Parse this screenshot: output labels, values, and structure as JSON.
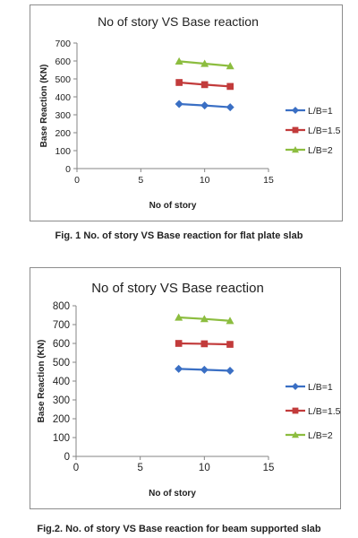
{
  "figures": [
    {
      "caption": "Fig. 1 No. of story VS Base reaction for flat plate slab"
    },
    {
      "caption": "Fig.2. No. of story VS Base reaction for beam supported slab"
    }
  ],
  "chart_data": [
    {
      "type": "line",
      "title": "No of story VS Base reaction",
      "xlabel": "No of story",
      "ylabel": "Base Reaction (KN)",
      "xlim": [
        0,
        15
      ],
      "ylim": [
        0,
        700
      ],
      "xticks": [
        0,
        5,
        10,
        15
      ],
      "yticks": [
        0,
        100,
        200,
        300,
        400,
        500,
        600,
        700
      ],
      "grid": false,
      "legend_position": "right",
      "series": [
        {
          "name": "L/B=1",
          "color": "#3a6fc4",
          "marker": "diamond",
          "x": [
            8,
            10,
            12
          ],
          "y": [
            360,
            352,
            342
          ]
        },
        {
          "name": "L/B=1.5",
          "color": "#c23b3b",
          "marker": "square",
          "x": [
            8,
            10,
            12
          ],
          "y": [
            480,
            468,
            458
          ]
        },
        {
          "name": "L/B=2",
          "color": "#8cbd3f",
          "marker": "triangle",
          "x": [
            8,
            10,
            12
          ],
          "y": [
            598,
            585,
            572
          ]
        }
      ]
    },
    {
      "type": "line",
      "title": "No of story VS Base reaction",
      "xlabel": "No of story",
      "ylabel": "Base Reaction (KN)",
      "xlim": [
        0,
        15
      ],
      "ylim": [
        0,
        800
      ],
      "xticks": [
        0,
        5,
        10,
        15
      ],
      "yticks": [
        0,
        100,
        200,
        300,
        400,
        500,
        600,
        700,
        800
      ],
      "grid": false,
      "legend_position": "right",
      "series": [
        {
          "name": "L/B=1",
          "color": "#3a6fc4",
          "marker": "diamond",
          "x": [
            8,
            10,
            12
          ],
          "y": [
            465,
            460,
            455
          ]
        },
        {
          "name": "L/B=1.5",
          "color": "#c23b3b",
          "marker": "square",
          "x": [
            8,
            10,
            12
          ],
          "y": [
            600,
            598,
            595
          ]
        },
        {
          "name": "L/B=2",
          "color": "#8cbd3f",
          "marker": "triangle",
          "x": [
            8,
            10,
            12
          ],
          "y": [
            738,
            730,
            720
          ]
        }
      ]
    }
  ]
}
